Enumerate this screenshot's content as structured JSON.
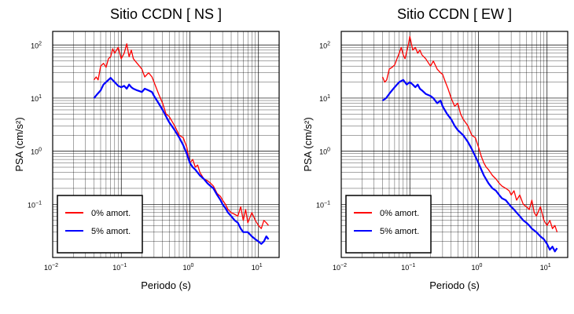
{
  "chart_data": [
    {
      "type": "line",
      "title": "Sitio CCDN [ NS ]",
      "xlabel": "Periodo (s)",
      "ylabel": "PSA (cm/s²)",
      "xscale": "log",
      "yscale": "log",
      "xlim": [
        0.01,
        20
      ],
      "ylim": [
        0.01,
        180
      ],
      "xticks": [
        {
          "mantissa": "10",
          "exp": "−2"
        },
        {
          "mantissa": "10",
          "exp": "−1"
        },
        {
          "mantissa": "10",
          "exp": "0"
        },
        {
          "mantissa": "10",
          "exp": "1"
        }
      ],
      "yticks": [
        {
          "mantissa": "10",
          "exp": "−1"
        },
        {
          "mantissa": "10",
          "exp": "0"
        },
        {
          "mantissa": "10",
          "exp": "1"
        },
        {
          "mantissa": "10",
          "exp": "2"
        }
      ],
      "grid": true,
      "legend_position": "bottom-left",
      "series": [
        {
          "name": "0% amort.",
          "color": "#ff0000",
          "points": [
            [
              0.04,
              22
            ],
            [
              0.043,
              25
            ],
            [
              0.046,
              22
            ],
            [
              0.05,
              40
            ],
            [
              0.055,
              45
            ],
            [
              0.06,
              38
            ],
            [
              0.065,
              55
            ],
            [
              0.07,
              60
            ],
            [
              0.075,
              85
            ],
            [
              0.08,
              70
            ],
            [
              0.09,
              90
            ],
            [
              0.1,
              55
            ],
            [
              0.11,
              70
            ],
            [
              0.12,
              105
            ],
            [
              0.13,
              60
            ],
            [
              0.14,
              80
            ],
            [
              0.15,
              55
            ],
            [
              0.17,
              45
            ],
            [
              0.2,
              35
            ],
            [
              0.22,
              25
            ],
            [
              0.25,
              30
            ],
            [
              0.28,
              25
            ],
            [
              0.3,
              20
            ],
            [
              0.35,
              12
            ],
            [
              0.4,
              8
            ],
            [
              0.45,
              5
            ],
            [
              0.5,
              4.5
            ],
            [
              0.6,
              3
            ],
            [
              0.7,
              2
            ],
            [
              0.8,
              1.8
            ],
            [
              0.9,
              1.2
            ],
            [
              1.0,
              0.6
            ],
            [
              1.1,
              0.7
            ],
            [
              1.2,
              0.5
            ],
            [
              1.3,
              0.55
            ],
            [
              1.4,
              0.4
            ],
            [
              1.6,
              0.3
            ],
            [
              1.8,
              0.28
            ],
            [
              2.0,
              0.25
            ],
            [
              2.2,
              0.22
            ],
            [
              2.5,
              0.16
            ],
            [
              2.8,
              0.14
            ],
            [
              3.0,
              0.12
            ],
            [
              3.3,
              0.1
            ],
            [
              3.6,
              0.08
            ],
            [
              4.0,
              0.07
            ],
            [
              4.5,
              0.065
            ],
            [
              5.0,
              0.06
            ],
            [
              5.5,
              0.09
            ],
            [
              6.0,
              0.05
            ],
            [
              6.5,
              0.08
            ],
            [
              7.0,
              0.045
            ],
            [
              8.0,
              0.07
            ],
            [
              9.0,
              0.05
            ],
            [
              10.0,
              0.04
            ],
            [
              11.0,
              0.035
            ],
            [
              12.0,
              0.05
            ],
            [
              13.0,
              0.045
            ],
            [
              14.0,
              0.04
            ]
          ]
        },
        {
          "name": "5% amort.",
          "color": "#0000ff",
          "points": [
            [
              0.04,
              10
            ],
            [
              0.045,
              12
            ],
            [
              0.05,
              14
            ],
            [
              0.055,
              18
            ],
            [
              0.06,
              20
            ],
            [
              0.065,
              22
            ],
            [
              0.07,
              24
            ],
            [
              0.08,
              20
            ],
            [
              0.09,
              17
            ],
            [
              0.1,
              16
            ],
            [
              0.11,
              17
            ],
            [
              0.12,
              15
            ],
            [
              0.13,
              18
            ],
            [
              0.14,
              16
            ],
            [
              0.15,
              15
            ],
            [
              0.17,
              14
            ],
            [
              0.2,
              13
            ],
            [
              0.22,
              15
            ],
            [
              0.25,
              14
            ],
            [
              0.28,
              13
            ],
            [
              0.3,
              11
            ],
            [
              0.35,
              8
            ],
            [
              0.4,
              6
            ],
            [
              0.45,
              4.5
            ],
            [
              0.5,
              3.5
            ],
            [
              0.6,
              2.5
            ],
            [
              0.7,
              1.8
            ],
            [
              0.8,
              1.3
            ],
            [
              0.9,
              0.9
            ],
            [
              1.0,
              0.6
            ],
            [
              1.1,
              0.5
            ],
            [
              1.2,
              0.45
            ],
            [
              1.4,
              0.35
            ],
            [
              1.6,
              0.3
            ],
            [
              1.8,
              0.25
            ],
            [
              2.0,
              0.22
            ],
            [
              2.2,
              0.2
            ],
            [
              2.5,
              0.15
            ],
            [
              2.8,
              0.12
            ],
            [
              3.0,
              0.1
            ],
            [
              3.3,
              0.085
            ],
            [
              3.6,
              0.07
            ],
            [
              4.0,
              0.06
            ],
            [
              4.5,
              0.05
            ],
            [
              5.0,
              0.045
            ],
            [
              5.5,
              0.035
            ],
            [
              6.0,
              0.03
            ],
            [
              7.0,
              0.03
            ],
            [
              8.0,
              0.025
            ],
            [
              9.0,
              0.022
            ],
            [
              10.0,
              0.02
            ],
            [
              11.0,
              0.018
            ],
            [
              12.0,
              0.02
            ],
            [
              13.0,
              0.025
            ],
            [
              14.0,
              0.022
            ]
          ]
        }
      ]
    },
    {
      "type": "line",
      "title": "Sitio CCDN [ EW ]",
      "xlabel": "Periodo (s)",
      "ylabel": "PSA (cm/s²)",
      "xscale": "log",
      "yscale": "log",
      "xlim": [
        0.01,
        20
      ],
      "ylim": [
        0.01,
        180
      ],
      "xticks": [
        {
          "mantissa": "10",
          "exp": "−2"
        },
        {
          "mantissa": "10",
          "exp": "−1"
        },
        {
          "mantissa": "10",
          "exp": "0"
        },
        {
          "mantissa": "10",
          "exp": "1"
        }
      ],
      "yticks": [
        {
          "mantissa": "10",
          "exp": "−1"
        },
        {
          "mantissa": "10",
          "exp": "0"
        },
        {
          "mantissa": "10",
          "exp": "1"
        },
        {
          "mantissa": "10",
          "exp": "2"
        }
      ],
      "grid": true,
      "legend_position": "bottom-left",
      "series": [
        {
          "name": "0% amort.",
          "color": "#ff0000",
          "points": [
            [
              0.04,
              25
            ],
            [
              0.043,
              20
            ],
            [
              0.046,
              22
            ],
            [
              0.05,
              35
            ],
            [
              0.055,
              38
            ],
            [
              0.06,
              42
            ],
            [
              0.065,
              55
            ],
            [
              0.07,
              70
            ],
            [
              0.075,
              90
            ],
            [
              0.08,
              65
            ],
            [
              0.085,
              55
            ],
            [
              0.09,
              75
            ],
            [
              0.095,
              100
            ],
            [
              0.1,
              145
            ],
            [
              0.11,
              80
            ],
            [
              0.12,
              90
            ],
            [
              0.13,
              70
            ],
            [
              0.14,
              80
            ],
            [
              0.15,
              65
            ],
            [
              0.17,
              55
            ],
            [
              0.2,
              40
            ],
            [
              0.22,
              50
            ],
            [
              0.25,
              35
            ],
            [
              0.28,
              30
            ],
            [
              0.3,
              28
            ],
            [
              0.33,
              20
            ],
            [
              0.36,
              15
            ],
            [
              0.4,
              10
            ],
            [
              0.45,
              7
            ],
            [
              0.5,
              8
            ],
            [
              0.55,
              5
            ],
            [
              0.6,
              4
            ],
            [
              0.7,
              3
            ],
            [
              0.8,
              2
            ],
            [
              0.9,
              1.8
            ],
            [
              1.0,
              1.2
            ],
            [
              1.1,
              0.8
            ],
            [
              1.2,
              0.6
            ],
            [
              1.3,
              0.5
            ],
            [
              1.4,
              0.45
            ],
            [
              1.6,
              0.35
            ],
            [
              1.8,
              0.3
            ],
            [
              2.0,
              0.25
            ],
            [
              2.2,
              0.22
            ],
            [
              2.5,
              0.2
            ],
            [
              2.8,
              0.18
            ],
            [
              3.0,
              0.15
            ],
            [
              3.3,
              0.18
            ],
            [
              3.6,
              0.12
            ],
            [
              4.0,
              0.15
            ],
            [
              4.5,
              0.1
            ],
            [
              5.0,
              0.09
            ],
            [
              5.5,
              0.08
            ],
            [
              6.0,
              0.12
            ],
            [
              6.5,
              0.07
            ],
            [
              7.0,
              0.06
            ],
            [
              8.0,
              0.09
            ],
            [
              9.0,
              0.05
            ],
            [
              10.0,
              0.04
            ],
            [
              11.0,
              0.05
            ],
            [
              12.0,
              0.035
            ],
            [
              13.0,
              0.04
            ],
            [
              14.0,
              0.03
            ]
          ]
        },
        {
          "name": "5% amort.",
          "color": "#0000ff",
          "points": [
            [
              0.04,
              9
            ],
            [
              0.045,
              10
            ],
            [
              0.05,
              12
            ],
            [
              0.055,
              14
            ],
            [
              0.06,
              16
            ],
            [
              0.065,
              18
            ],
            [
              0.07,
              20
            ],
            [
              0.08,
              22
            ],
            [
              0.09,
              18
            ],
            [
              0.1,
              20
            ],
            [
              0.11,
              18
            ],
            [
              0.12,
              16
            ],
            [
              0.13,
              18
            ],
            [
              0.14,
              15
            ],
            [
              0.15,
              14
            ],
            [
              0.17,
              12
            ],
            [
              0.2,
              11
            ],
            [
              0.22,
              10
            ],
            [
              0.25,
              8
            ],
            [
              0.28,
              9
            ],
            [
              0.3,
              7
            ],
            [
              0.35,
              5
            ],
            [
              0.4,
              4
            ],
            [
              0.45,
              3
            ],
            [
              0.5,
              2.5
            ],
            [
              0.6,
              2
            ],
            [
              0.7,
              1.5
            ],
            [
              0.8,
              1.1
            ],
            [
              0.9,
              0.8
            ],
            [
              1.0,
              0.6
            ],
            [
              1.1,
              0.45
            ],
            [
              1.2,
              0.35
            ],
            [
              1.4,
              0.25
            ],
            [
              1.6,
              0.2
            ],
            [
              1.8,
              0.18
            ],
            [
              2.0,
              0.15
            ],
            [
              2.2,
              0.13
            ],
            [
              2.5,
              0.12
            ],
            [
              2.8,
              0.1
            ],
            [
              3.0,
              0.09
            ],
            [
              3.3,
              0.08
            ],
            [
              3.6,
              0.07
            ],
            [
              4.0,
              0.06
            ],
            [
              4.5,
              0.05
            ],
            [
              5.0,
              0.045
            ],
            [
              5.5,
              0.04
            ],
            [
              6.0,
              0.035
            ],
            [
              7.0,
              0.03
            ],
            [
              8.0,
              0.025
            ],
            [
              9.0,
              0.022
            ],
            [
              10.0,
              0.018
            ],
            [
              11.0,
              0.014
            ],
            [
              12.0,
              0.016
            ],
            [
              13.0,
              0.013
            ],
            [
              14.0,
              0.015
            ]
          ]
        }
      ]
    }
  ]
}
